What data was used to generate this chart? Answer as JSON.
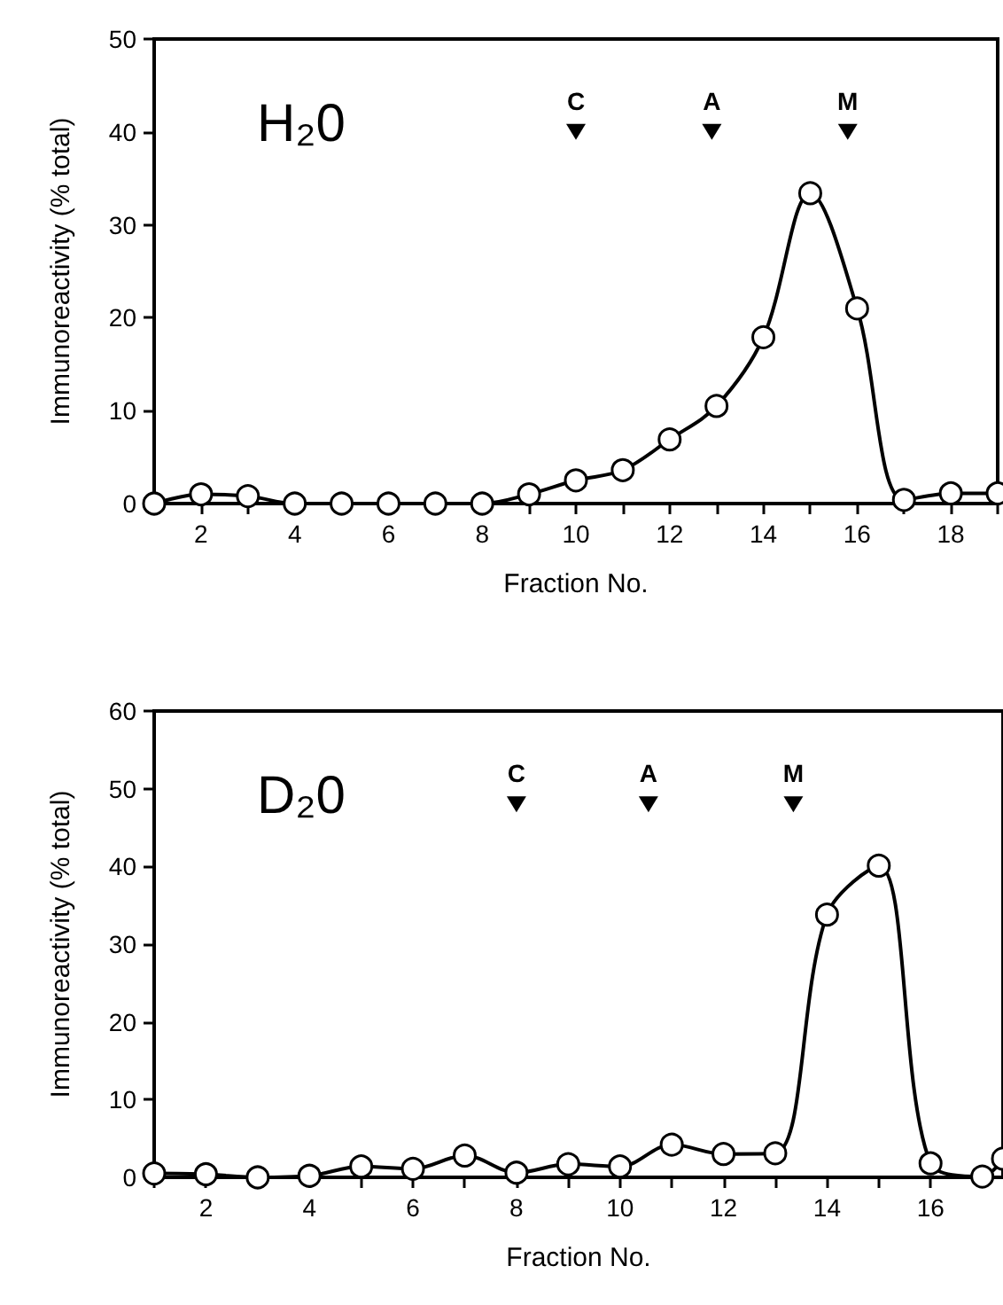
{
  "chart_data": [
    {
      "type": "line",
      "title": "H₂0",
      "xlabel": "Fraction No.",
      "ylabel": "Immunoreactivity (% total)",
      "x": [
        1,
        2,
        3,
        4,
        5,
        6,
        7,
        8,
        9,
        10,
        11,
        12,
        13,
        14,
        15,
        16,
        17,
        18,
        19
      ],
      "series": [
        {
          "color": "#000000",
          "values": [
            0,
            1.0,
            0.8,
            0,
            0,
            0,
            0,
            0,
            1.0,
            2.5,
            3.6,
            6.9,
            10.5,
            17.9,
            33.4,
            21.0,
            0.4,
            1.1,
            1.1
          ]
        }
      ],
      "xlim": [
        1,
        19
      ],
      "xticks": [
        {
          "value": 1,
          "label": null
        },
        2,
        {
          "value": 3,
          "label": null
        },
        4,
        {
          "value": 5,
          "label": null
        },
        6,
        {
          "value": 7,
          "label": null
        },
        8,
        {
          "value": 9,
          "label": null
        },
        10,
        {
          "value": 11,
          "label": null
        },
        12,
        {
          "value": 13,
          "label": null
        },
        14,
        {
          "value": 15,
          "label": null
        },
        16,
        {
          "value": 17,
          "label": null
        },
        18,
        {
          "value": 19,
          "label": null
        }
      ],
      "ylim": [
        0,
        50
      ],
      "yticks": [
        0,
        10,
        20,
        30,
        40,
        50
      ],
      "annotations": [
        {
          "text": "C",
          "x": 10,
          "y": 40
        },
        {
          "text": "A",
          "x": 12.9,
          "y": 40
        },
        {
          "text": "M",
          "x": 15.8,
          "y": 40
        }
      ],
      "marker": "circle",
      "grid": false
    },
    {
      "type": "line",
      "title": "D₂0",
      "xlabel": "Fraction No.",
      "ylabel": "Immunoreactivity (% total)",
      "x": [
        1,
        2,
        3,
        4,
        5,
        6,
        7,
        8,
        9,
        10,
        11,
        12,
        13,
        14,
        15,
        16,
        17,
        17.4
      ],
      "series": [
        {
          "color": "#000000",
          "values": [
            0.5,
            0.4,
            0,
            0.2,
            1.4,
            1.1,
            2.8,
            0.6,
            1.7,
            1.4,
            4.2,
            3.0,
            3.1,
            33.8,
            40.1,
            1.8,
            0.1,
            2.4
          ]
        }
      ],
      "xlim": [
        1,
        17.4
      ],
      "xticks": [
        {
          "value": 1,
          "label": null
        },
        2,
        {
          "value": 3,
          "label": null
        },
        4,
        {
          "value": 5,
          "label": null
        },
        6,
        {
          "value": 7,
          "label": null
        },
        8,
        {
          "value": 9,
          "label": null
        },
        10,
        {
          "value": 11,
          "label": null
        },
        12,
        {
          "value": 13,
          "label": null
        },
        14,
        {
          "value": 15,
          "label": null
        },
        16,
        {
          "value": 17,
          "label": null
        }
      ],
      "ylim": [
        0,
        60
      ],
      "yticks": [
        0,
        10,
        20,
        30,
        40,
        50,
        60
      ],
      "annotations": [
        {
          "text": "C",
          "x": 8,
          "y": 48
        },
        {
          "text": "A",
          "x": 10.55,
          "y": 48
        },
        {
          "text": "M",
          "x": 13.35,
          "y": 48
        }
      ],
      "marker": "circle",
      "grid": false
    }
  ]
}
